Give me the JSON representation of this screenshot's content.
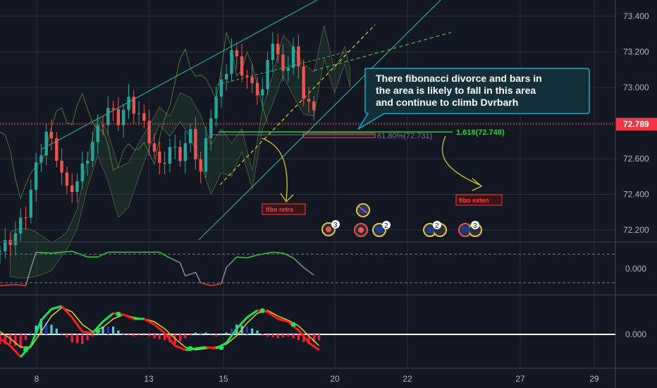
{
  "colors": {
    "background": "#131722",
    "grid": "#2a2e39",
    "bull": "#26a69a",
    "bear": "#ef5350",
    "price_line": "#f23645",
    "channel": "#26a69a",
    "dashed_yellow": "#d7d42a",
    "dashed_green": "#4caf50",
    "note_fill": "#13303a",
    "note_border": "#26a6c6",
    "fib_green": "#2ecc40",
    "fib_gray": "#787b86",
    "label_red": "#ff3b3b",
    "curve_yellow": "#d4c62a",
    "osc_green": "#2ecc40",
    "osc_gray": "#8a8d96",
    "osc_red": "#e53935",
    "macd_red": "#ff1a1a",
    "macd_green": "#1ee05a",
    "macd_yellow": "#d9d41c",
    "hist_cyan": "#4dd0e1",
    "hist_blue": "#1e3ac8",
    "hist_red": "#ff1744"
  },
  "icons": [
    "flag-icon-3",
    "flag-icon",
    "flag-icon",
    "flag-icon-2",
    "flag-icon-2",
    "flag-icon-3"
  ],
  "annotations": {
    "note_lines": [
      "There fibonacci divorce and bars in",
      "the area is likely to fall in this area",
      "and continue to climb Dvrbarh"
    ],
    "fib_level_gray": "61.80%(72.731)",
    "fib_level_green": "1.618(72.748)",
    "label_retra": "fibo retra",
    "label_exten": "fibo exten",
    "event_counts": [
      "3",
      "2",
      "2",
      "3"
    ]
  },
  "chart_data": [
    {
      "type": "candlestick",
      "title": "",
      "x_tick_labels": [
        "8",
        "13",
        "15",
        "20",
        "22",
        "27",
        "29"
      ],
      "y_tick_labels": [
        "73.400",
        "73.200",
        "73.000",
        "72.800",
        "72.600",
        "72.400",
        "72.200"
      ],
      "ylim": [
        72.15,
        73.45
      ],
      "current_price": 72.789,
      "current_price_label": "72.789",
      "fib_levels": [
        72.731,
        72.748
      ],
      "close_path": [
        [
          0,
          72.08
        ],
        [
          3,
          72.18
        ],
        [
          5,
          72.3
        ],
        [
          7,
          72.55
        ],
        [
          9,
          72.75
        ],
        [
          11,
          72.62
        ],
        [
          13,
          72.42
        ],
        [
          15,
          72.47
        ],
        [
          17,
          72.62
        ],
        [
          19,
          72.76
        ],
        [
          21,
          72.88
        ],
        [
          23,
          72.82
        ],
        [
          25,
          72.92
        ],
        [
          27,
          72.85
        ],
        [
          29,
          72.72
        ],
        [
          31,
          72.55
        ],
        [
          33,
          72.66
        ],
        [
          35,
          72.62
        ],
        [
          37,
          72.74
        ],
        [
          39,
          72.52
        ],
        [
          41,
          72.86
        ],
        [
          43,
          73.02
        ],
        [
          45,
          73.2
        ],
        [
          47,
          73.1
        ],
        [
          49,
          73.0
        ],
        [
          51,
          72.98
        ],
        [
          53,
          73.28
        ],
        [
          55,
          73.07
        ],
        [
          57,
          73.22
        ],
        [
          59,
          72.97
        ],
        [
          61,
          72.85
        ]
      ],
      "grid": true
    },
    {
      "type": "line",
      "title": "",
      "y_tick_labels": [
        "0.000"
      ],
      "ylim": [
        -1.2,
        1.2
      ],
      "guide_levels": [
        0.75,
        -0.75
      ],
      "series": [
        {
          "values": [
            [
              0,
              -0.9
            ],
            [
              3,
              -0.85
            ],
            [
              5,
              -0.9
            ],
            [
              6,
              0.0
            ],
            [
              7,
              0.85
            ],
            [
              10,
              0.8
            ],
            [
              14,
              0.9
            ],
            [
              17,
              0.6
            ],
            [
              19,
              0.6
            ],
            [
              21,
              0.85
            ],
            [
              31,
              0.85
            ],
            [
              33,
              0.55
            ],
            [
              35,
              0.3
            ],
            [
              36,
              -0.4
            ],
            [
              38,
              -0.2
            ],
            [
              39,
              -0.75
            ],
            [
              41,
              -0.9
            ],
            [
              43,
              -0.8
            ],
            [
              44,
              0.05
            ],
            [
              46,
              0.6
            ],
            [
              48,
              0.55
            ],
            [
              50,
              0.7
            ],
            [
              53,
              0.85
            ],
            [
              55,
              0.8
            ],
            [
              57,
              0.55
            ],
            [
              59,
              0.05
            ],
            [
              61,
              -0.35
            ]
          ]
        }
      ]
    },
    {
      "type": "line",
      "title": "",
      "y_tick_labels": [
        "0.000"
      ],
      "ylim": [
        -1.3,
        1.3
      ],
      "series": [
        {
          "values": [
            [
              0,
              -0.15
            ],
            [
              2,
              -0.4
            ],
            [
              4,
              -0.8
            ],
            [
              6,
              -0.4
            ],
            [
              8,
              0.5
            ],
            [
              10,
              0.9
            ],
            [
              12,
              1.0
            ],
            [
              14,
              0.6
            ],
            [
              16,
              0.1
            ],
            [
              18,
              0.05
            ],
            [
              20,
              0.45
            ],
            [
              22,
              0.75
            ],
            [
              24,
              0.7
            ],
            [
              26,
              0.55
            ],
            [
              28,
              0.55
            ],
            [
              30,
              0.35
            ],
            [
              32,
              0.05
            ],
            [
              34,
              -0.4
            ],
            [
              36,
              -0.55
            ],
            [
              38,
              -0.5
            ],
            [
              40,
              -0.45
            ],
            [
              42,
              -0.5
            ],
            [
              44,
              -0.3
            ],
            [
              46,
              0.2
            ],
            [
              48,
              0.6
            ],
            [
              50,
              0.85
            ],
            [
              52,
              0.8
            ],
            [
              54,
              0.55
            ],
            [
              56,
              0.45
            ],
            [
              58,
              0.15
            ],
            [
              60,
              -0.3
            ],
            [
              62,
              -0.55
            ]
          ]
        },
        {
          "values": [
            [
              0,
              0.1
            ],
            [
              2,
              -0.15
            ],
            [
              4,
              -0.45
            ],
            [
              6,
              -0.45
            ],
            [
              8,
              0.1
            ],
            [
              10,
              0.65
            ],
            [
              12,
              0.95
            ],
            [
              14,
              0.8
            ],
            [
              16,
              0.35
            ],
            [
              18,
              0.1
            ],
            [
              20,
              0.25
            ],
            [
              22,
              0.55
            ],
            [
              24,
              0.7
            ],
            [
              26,
              0.6
            ],
            [
              28,
              0.55
            ],
            [
              30,
              0.45
            ],
            [
              32,
              0.2
            ],
            [
              34,
              -0.15
            ],
            [
              36,
              -0.45
            ],
            [
              38,
              -0.55
            ],
            [
              40,
              -0.5
            ],
            [
              42,
              -0.45
            ],
            [
              44,
              -0.35
            ],
            [
              46,
              -0.05
            ],
            [
              48,
              0.4
            ],
            [
              50,
              0.75
            ],
            [
              52,
              0.85
            ],
            [
              54,
              0.65
            ],
            [
              56,
              0.5
            ],
            [
              58,
              0.3
            ],
            [
              60,
              -0.05
            ],
            [
              62,
              -0.4
            ]
          ]
        }
      ]
    }
  ]
}
